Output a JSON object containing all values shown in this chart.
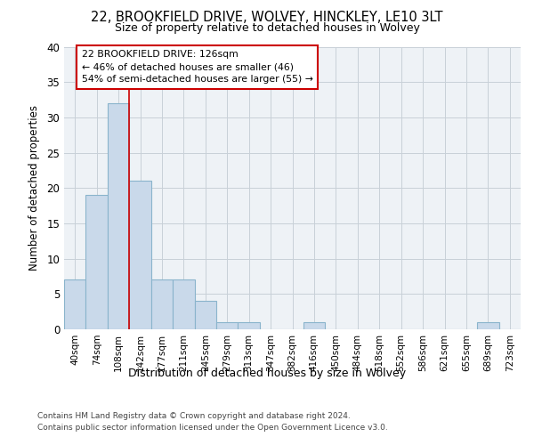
{
  "title_line1": "22, BROOKFIELD DRIVE, WOLVEY, HINCKLEY, LE10 3LT",
  "title_line2": "Size of property relative to detached houses in Wolvey",
  "xlabel": "Distribution of detached houses by size in Wolvey",
  "ylabel": "Number of detached properties",
  "bin_labels": [
    "40sqm",
    "74sqm",
    "108sqm",
    "142sqm",
    "177sqm",
    "211sqm",
    "245sqm",
    "279sqm",
    "313sqm",
    "347sqm",
    "382sqm",
    "416sqm",
    "450sqm",
    "484sqm",
    "518sqm",
    "552sqm",
    "586sqm",
    "621sqm",
    "655sqm",
    "689sqm",
    "723sqm"
  ],
  "bar_heights": [
    7,
    19,
    32,
    21,
    7,
    7,
    4,
    1,
    1,
    0,
    0,
    1,
    0,
    0,
    0,
    0,
    0,
    0,
    0,
    1,
    0
  ],
  "bar_color": "#c9d9ea",
  "bar_edge_color": "#8ab4cc",
  "vline_color": "#cc0000",
  "vline_x": 2.5,
  "annotation_line1": "22 BROOKFIELD DRIVE: 126sqm",
  "annotation_line2": "← 46% of detached houses are smaller (46)",
  "annotation_line3": "54% of semi-detached houses are larger (55) →",
  "ylim": [
    0,
    40
  ],
  "yticks": [
    0,
    5,
    10,
    15,
    20,
    25,
    30,
    35,
    40
  ],
  "grid_color": "#c8d0d8",
  "background_color": "#eef2f6",
  "footer_line1": "Contains HM Land Registry data © Crown copyright and database right 2024.",
  "footer_line2": "Contains public sector information licensed under the Open Government Licence v3.0."
}
